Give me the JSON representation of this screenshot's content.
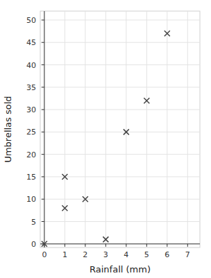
{
  "chart_data": {
    "type": "scatter",
    "x": [
      0,
      1,
      1,
      2,
      3,
      4,
      5,
      6
    ],
    "values": [
      0,
      8,
      15,
      10,
      1,
      25,
      32,
      47
    ],
    "xlabel": "Rainfall (mm)",
    "ylabel": "Umbrellas sold",
    "xlim": [
      -0.2,
      7.6
    ],
    "ylim": [
      -0.8,
      52
    ],
    "xticks": [
      0,
      1,
      2,
      3,
      4,
      5,
      6,
      7
    ],
    "yticks": [
      0,
      5,
      10,
      15,
      20,
      25,
      30,
      35,
      40,
      45,
      50
    ],
    "marker": "x",
    "color": "#444444",
    "grid": true
  }
}
